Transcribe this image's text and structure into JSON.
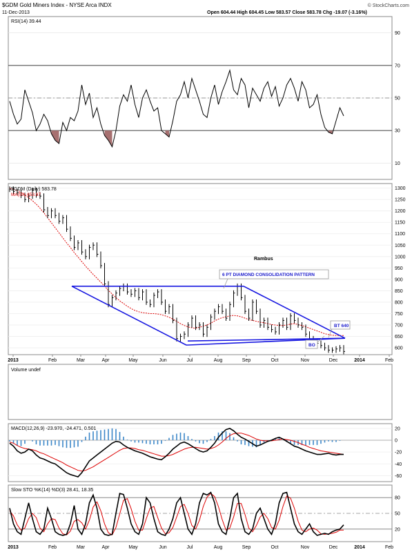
{
  "header": {
    "symbol_line": "$GDM Gold Miners Index - NYSE Arca INDX",
    "date": "11-Dec-2013",
    "quote": "Open 604.44  High 604.45  Low 583.57  Close 583.78  Chg -19.07 (-3.16%)",
    "watermark": "© StockCharts.com"
  },
  "chart_data": [
    {
      "type": "line",
      "panel": "rsi",
      "title": "RSI(14) 39.44",
      "ylim": [
        0,
        100
      ],
      "yticks": [
        10,
        30,
        50,
        70,
        90
      ],
      "reference_lines": [
        30,
        50,
        70
      ],
      "series": [
        {
          "name": "RSI(14)",
          "values": [
            48,
            40,
            34,
            37,
            55,
            48,
            41,
            30,
            34,
            40,
            36,
            28,
            24,
            22,
            35,
            30,
            38,
            36,
            42,
            58,
            46,
            53,
            38,
            44,
            34,
            27,
            24,
            20,
            30,
            45,
            52,
            48,
            58,
            46,
            38,
            50,
            55,
            48,
            42,
            44,
            30,
            28,
            26,
            36,
            48,
            52,
            60,
            50,
            62,
            55,
            48,
            40,
            38,
            50,
            58,
            46,
            54,
            60,
            67,
            55,
            52,
            62,
            58,
            44,
            56,
            52,
            48,
            56,
            60,
            51,
            57,
            45,
            50,
            58,
            62,
            56,
            48,
            60,
            55,
            44,
            46,
            52,
            40,
            32,
            29,
            28,
            36,
            44,
            39
          ]
        }
      ]
    },
    {
      "type": "line",
      "panel": "price",
      "title": "$GDM (Daily) 583.78",
      "legend": [
        "MA(50) 653.97"
      ],
      "ylim": [
        570,
        1320
      ],
      "yticks": [
        600,
        650,
        700,
        750,
        800,
        850,
        900,
        950,
        1000,
        1050,
        1100,
        1150,
        1200,
        1250,
        1300
      ],
      "xticks": [
        "2013",
        "Feb",
        "Mar",
        "Apr",
        "May",
        "Jun",
        "Jul",
        "Aug",
        "Sep",
        "Oct",
        "Nov",
        "Dec",
        "2014",
        "Feb"
      ],
      "series": [
        {
          "name": "$GDM",
          "values": [
            1295,
            1285,
            1280,
            1268,
            1250,
            1265,
            1290,
            1270,
            1265,
            1205,
            1180,
            1200,
            1180,
            1155,
            1170,
            1120,
            1080,
            1040,
            1060,
            1020,
            1000,
            1040,
            1050,
            1010,
            960,
            880,
            790,
            820,
            840,
            860,
            870,
            845,
            835,
            850,
            820,
            845,
            800,
            790,
            830,
            845,
            800,
            760,
            780,
            720,
            640,
            650,
            660,
            700,
            730,
            690,
            700,
            660,
            690,
            735,
            760,
            780,
            760,
            730,
            790,
            840,
            870,
            820,
            760,
            730,
            800,
            760,
            700,
            720,
            690,
            680,
            670,
            700,
            720,
            690,
            740,
            720,
            700,
            690,
            660,
            640,
            630,
            620,
            610,
            600,
            590,
            590,
            595,
            600,
            584
          ]
        },
        {
          "name": "MA(50)",
          "values": [
            1300,
            1295,
            1288,
            1280,
            1270,
            1258,
            1245,
            1230,
            1212,
            1192,
            1170,
            1148,
            1126,
            1104,
            1082,
            1060,
            1040,
            1018,
            998,
            978,
            958,
            940,
            922,
            905,
            888,
            870,
            852,
            836,
            820,
            806,
            794,
            782,
            772,
            764,
            758,
            754,
            752,
            750,
            750,
            748,
            745,
            740,
            734,
            726,
            716,
            706,
            698,
            692,
            688,
            686,
            690,
            695,
            700,
            708,
            718,
            726,
            732,
            736,
            740,
            742,
            740,
            736,
            730,
            724,
            720,
            716,
            712,
            710,
            706,
            702,
            700,
            698,
            698,
            700,
            704,
            706,
            702,
            698,
            692,
            686,
            680,
            674,
            668,
            662,
            658,
            655,
            654,
            654,
            654
          ]
        }
      ],
      "annotations": [
        {
          "text": "Rambus"
        },
        {
          "text": "6 PT DIAMOND CONSOLIDATION PATTERN"
        },
        {
          "text": "BT 640"
        },
        {
          "text": "BO"
        }
      ],
      "pattern_lines": {
        "top": [
          {
            "date": "Feb",
            "price": 870
          },
          {
            "date": "Aug 20",
            "price": 870
          }
        ],
        "right_upper": [
          {
            "date": "Aug 20",
            "price": 870
          },
          {
            "date": "Dec 20",
            "price": 642
          }
        ],
        "right_lower": [
          {
            "date": "Dec 20",
            "price": 642
          },
          {
            "date": "Jun 20",
            "price": 612
          }
        ],
        "left_lower": [
          {
            "date": "Jun 20",
            "price": 612
          },
          {
            "date": "Feb",
            "price": 870
          }
        ],
        "flat": [
          {
            "date": "Jun 25",
            "price": 630
          },
          {
            "date": "Dec 20",
            "price": 642
          }
        ]
      }
    },
    {
      "type": "bar",
      "panel": "volume",
      "title": "Volume undef",
      "values": []
    },
    {
      "type": "line",
      "panel": "macd",
      "title": "MACD(12,26,9) -23.970, -24.471, 0.501",
      "ylim": [
        -70,
        28
      ],
      "yticks": [
        20,
        0,
        -20,
        -40,
        -60
      ],
      "series": [
        {
          "name": "MACD(12,26,9)",
          "values": [
            -5,
            -10,
            -18,
            -22,
            -20,
            -15,
            -18,
            -25,
            -30,
            -32,
            -35,
            -38,
            -40,
            -45,
            -50,
            -55,
            -58,
            -60,
            -62,
            -55,
            -45,
            -35,
            -30,
            -25,
            -20,
            -15,
            -10,
            -5,
            -2,
            -3,
            -8,
            -12,
            -15,
            -18,
            -20,
            -22,
            -25,
            -28,
            -30,
            -32,
            -33,
            -28,
            -22,
            -15,
            -10,
            -5,
            -3,
            -6,
            -10,
            -14,
            -18,
            -20,
            -18,
            -12,
            -5,
            5,
            12,
            18,
            20,
            16,
            10,
            5,
            2,
            -2,
            -6,
            -10,
            -8,
            -5,
            -2,
            0,
            3,
            5,
            2,
            -2,
            -6,
            -10,
            -12,
            -15,
            -18,
            -20,
            -22,
            -24,
            -24,
            -23,
            -22,
            -24,
            -25,
            -24,
            -24
          ]
        },
        {
          "name": "Signal",
          "values": [
            -3,
            -5,
            -9,
            -12,
            -14,
            -15,
            -16,
            -18,
            -21,
            -23,
            -26,
            -29,
            -32,
            -35,
            -38,
            -42,
            -45,
            -48,
            -51,
            -52,
            -51,
            -48,
            -45,
            -41,
            -37,
            -33,
            -29,
            -25,
            -21,
            -17,
            -14,
            -13,
            -13,
            -14,
            -16,
            -17,
            -19,
            -21,
            -23,
            -25,
            -27,
            -27,
            -26,
            -24,
            -21,
            -18,
            -15,
            -13,
            -12,
            -12,
            -13,
            -14,
            -15,
            -14,
            -12,
            -8,
            -3,
            3,
            8,
            11,
            12,
            12,
            10,
            8,
            5,
            2,
            0,
            -1,
            -1,
            -1,
            0,
            1,
            2,
            1,
            0,
            -2,
            -4,
            -7,
            -9,
            -12,
            -14,
            -16,
            -18,
            -19,
            -20,
            -21,
            -22,
            -23,
            -24
          ]
        },
        {
          "name": "Histogram",
          "values": [
            -2,
            -5,
            -9,
            -10,
            -6,
            0,
            -2,
            -7,
            -9,
            -9,
            -9,
            -9,
            -8,
            -10,
            -12,
            -13,
            -13,
            -12,
            -11,
            -3,
            6,
            13,
            15,
            16,
            17,
            18,
            19,
            20,
            19,
            14,
            6,
            1,
            -2,
            -4,
            -4,
            -5,
            -6,
            -7,
            -7,
            -7,
            -6,
            -1,
            4,
            9,
            11,
            13,
            12,
            7,
            2,
            -2,
            -5,
            -6,
            -3,
            2,
            7,
            13,
            15,
            15,
            12,
            5,
            -2,
            -7,
            -8,
            -10,
            -11,
            -12,
            -8,
            -4,
            -1,
            1,
            3,
            4,
            0,
            -3,
            -6,
            -8,
            -8,
            -8,
            -9,
            -8,
            -8,
            -8,
            -6,
            -4,
            -2,
            -3,
            -3,
            -1,
            0
          ]
        }
      ]
    },
    {
      "type": "line",
      "panel": "stochastic",
      "title": "Slow STO %K(14) %D(3) 28.41, 18.35",
      "ylim": [
        0,
        100
      ],
      "yticks": [
        20,
        50,
        80
      ],
      "reference_lines": [
        20,
        50,
        80
      ],
      "series": [
        {
          "name": "%K(14)",
          "values": [
            60,
            30,
            15,
            10,
            40,
            70,
            40,
            15,
            10,
            20,
            60,
            40,
            15,
            10,
            8,
            10,
            30,
            65,
            20,
            10,
            30,
            70,
            85,
            60,
            20,
            10,
            8,
            10,
            50,
            88,
            86,
            60,
            30,
            15,
            10,
            30,
            80,
            70,
            40,
            15,
            10,
            8,
            20,
            40,
            70,
            80,
            50,
            20,
            10,
            30,
            70,
            88,
            85,
            90,
            70,
            30,
            15,
            10,
            40,
            80,
            88,
            40,
            15,
            10,
            20,
            50,
            60,
            40,
            20,
            10,
            30,
            70,
            88,
            90,
            60,
            30,
            15,
            10,
            20,
            30,
            15,
            8,
            10,
            12,
            10,
            15,
            18,
            20,
            28
          ]
        },
        {
          "name": "%D(3)",
          "values": [
            55,
            45,
            28,
            18,
            22,
            40,
            50,
            42,
            22,
            15,
            30,
            40,
            38,
            22,
            11,
            9,
            16,
            35,
            38,
            32,
            20,
            37,
            62,
            72,
            55,
            30,
            13,
            9,
            23,
            49,
            75,
            78,
            59,
            35,
            18,
            18,
            40,
            60,
            63,
            42,
            22,
            11,
            13,
            23,
            43,
            63,
            67,
            50,
            27,
            20,
            37,
            63,
            81,
            88,
            82,
            63,
            38,
            18,
            22,
            43,
            69,
            69,
            48,
            22,
            15,
            27,
            43,
            50,
            40,
            23,
            20,
            37,
            63,
            83,
            79,
            60,
            35,
            18,
            15,
            20,
            22,
            18,
            11,
            10,
            11,
            12,
            14,
            18,
            18
          ]
        }
      ]
    }
  ]
}
